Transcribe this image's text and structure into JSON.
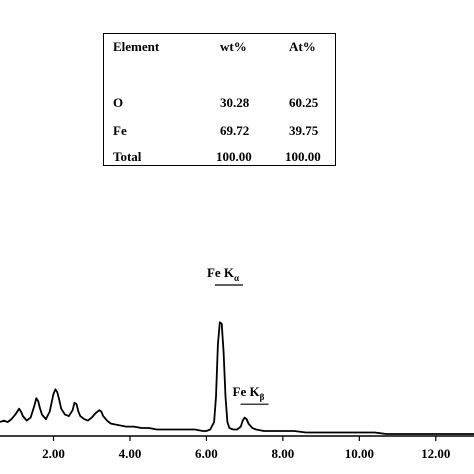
{
  "table": {
    "headers": [
      "Element",
      "wt%",
      "At%"
    ],
    "rows": [
      {
        "element": "O",
        "wt": "30.28",
        "at": "60.25"
      },
      {
        "element": "Fe",
        "wt": "69.72",
        "at": "39.75"
      },
      {
        "element": "Total",
        "wt": "100.00",
        "at": "100.00"
      }
    ]
  },
  "chart_data": {
    "type": "line",
    "title": "",
    "xlabel": "",
    "ylabel": "",
    "xlim": [
      0.6,
      13.0
    ],
    "ylim": [
      0,
      100
    ],
    "x_ticks": [
      2,
      4,
      6,
      8,
      10,
      12
    ],
    "x_tick_labels": [
      "2.00",
      "4.00",
      "6.00",
      "8.00",
      "10.00",
      "12.00"
    ],
    "grid": false,
    "series": [
      {
        "x": [
          0.6,
          0.7,
          0.8,
          0.9,
          1.0,
          1.05,
          1.1,
          1.15,
          1.2,
          1.3,
          1.4,
          1.5,
          1.55,
          1.6,
          1.65,
          1.7,
          1.8,
          1.9,
          2.0,
          2.05,
          2.1,
          2.15,
          2.2,
          2.3,
          2.4,
          2.5,
          2.55,
          2.6,
          2.65,
          2.7,
          2.8,
          2.9,
          3.0,
          3.1,
          3.2,
          3.25,
          3.3,
          3.4,
          3.5,
          3.7,
          3.9,
          4.1,
          4.3,
          4.5,
          4.7,
          4.9,
          5.1,
          5.3,
          5.5,
          5.7,
          5.9,
          6.0,
          6.1,
          6.2,
          6.25,
          6.3,
          6.35,
          6.4,
          6.45,
          6.5,
          6.55,
          6.6,
          6.7,
          6.8,
          6.9,
          6.95,
          7.0,
          7.05,
          7.1,
          7.2,
          7.3,
          7.5,
          7.7,
          8.0,
          8.3,
          8.6,
          8.9,
          9.2,
          9.5,
          9.8,
          10.1,
          10.4,
          10.7,
          11.0,
          11.3,
          11.6,
          11.9,
          12.2,
          12.5,
          12.8,
          13.0
        ],
        "y": [
          8,
          9,
          8,
          10,
          13,
          15,
          17,
          15,
          12,
          9,
          11,
          19,
          24,
          22,
          17,
          13,
          10,
          15,
          27,
          30,
          28,
          23,
          17,
          13,
          12,
          16,
          21,
          20,
          15,
          12,
          10,
          9,
          11,
          14,
          16,
          15,
          12,
          9,
          7,
          6,
          5,
          5,
          4,
          4,
          3,
          3,
          3,
          3,
          3,
          3,
          2,
          2,
          3,
          8,
          25,
          60,
          75,
          74,
          55,
          25,
          8,
          4,
          3,
          3,
          5,
          9,
          11,
          10,
          7,
          4,
          3,
          2,
          2,
          2,
          2,
          1,
          1,
          1,
          1,
          1,
          1,
          1,
          0,
          0,
          0,
          0,
          0,
          0,
          0,
          0,
          0
        ]
      }
    ],
    "annotations": [
      {
        "base": "Fe K",
        "sub": "α",
        "x": 6.38
      },
      {
        "base": "Fe K",
        "sub": "β",
        "x": 7.05
      }
    ]
  }
}
